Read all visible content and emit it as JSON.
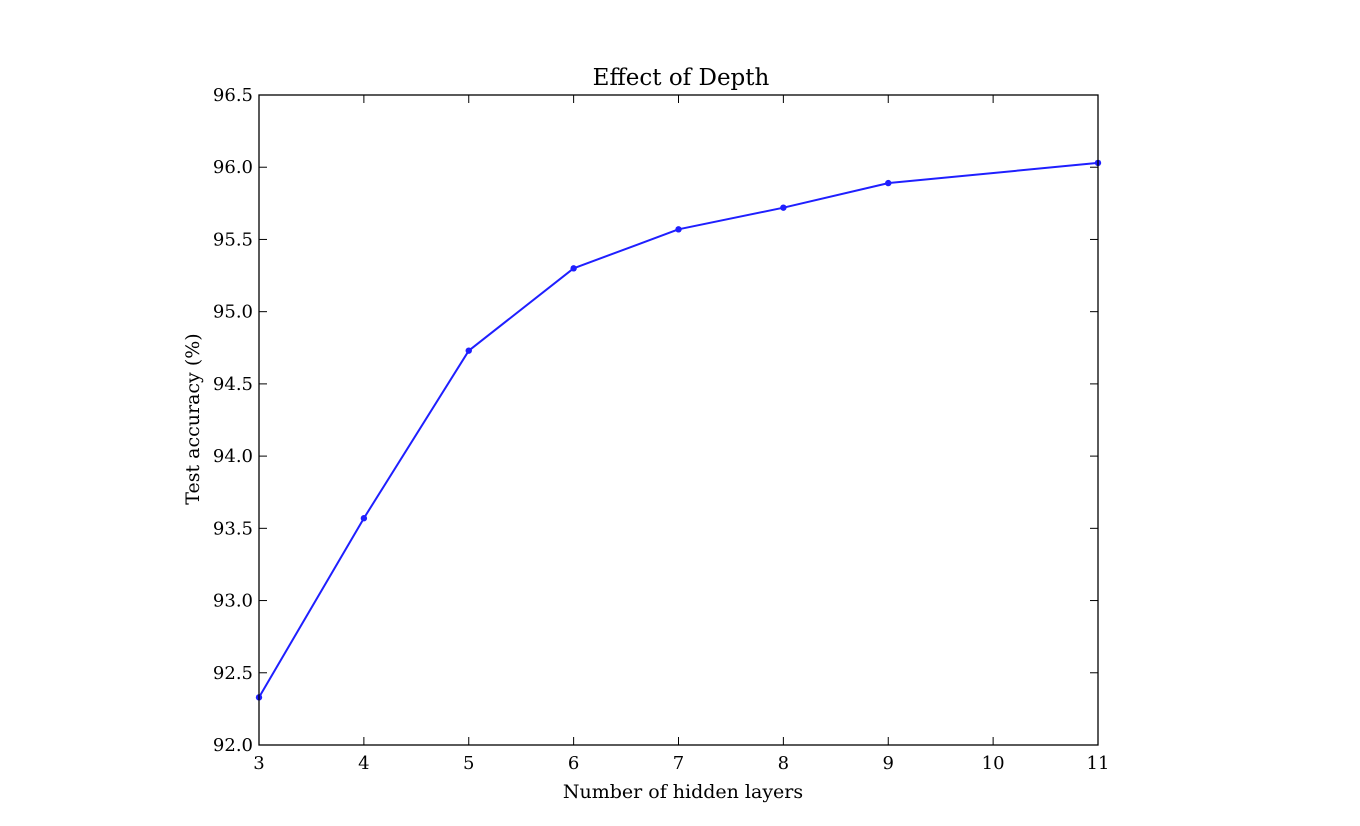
{
  "chart_data": {
    "type": "line",
    "title": "Effect of Depth",
    "xlabel": "Number of hidden layers",
    "ylabel": "Test accuracy (%)",
    "xlim": [
      3,
      11
    ],
    "ylim": [
      92.0,
      96.5
    ],
    "xticks": [
      3,
      4,
      5,
      6,
      7,
      8,
      9,
      10,
      11
    ],
    "xtick_labels": [
      "3",
      "4",
      "5",
      "6",
      "7",
      "8",
      "9",
      "10",
      "11"
    ],
    "yticks": [
      92.0,
      92.5,
      93.0,
      93.5,
      94.0,
      94.5,
      95.0,
      95.5,
      96.0,
      96.5
    ],
    "ytick_labels": [
      "92.0",
      "92.5",
      "93.0",
      "93.5",
      "94.0",
      "94.5",
      "95.0",
      "95.5",
      "96.0",
      "96.5"
    ],
    "grid": false,
    "legend": "none",
    "series": [
      {
        "color": "#1f1fff",
        "marker": "dot",
        "x": [
          3,
          4,
          5,
          6,
          7,
          8,
          9,
          11
        ],
        "y": [
          92.33,
          93.57,
          94.73,
          95.3,
          95.57,
          95.72,
          95.89,
          96.03
        ]
      }
    ]
  }
}
